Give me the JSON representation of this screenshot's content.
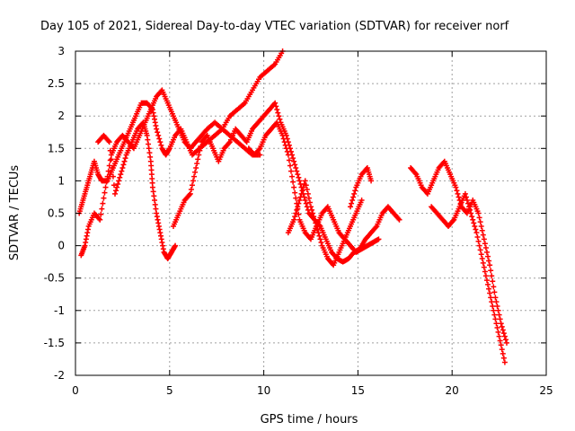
{
  "chart_data": {
    "type": "scatter",
    "title": "Day 105 of 2021, Sidereal Day-to-day VTEC variation (SDTVAR) for receiver norf",
    "xlabel": "GPS time / hours",
    "ylabel": "SDTVAR / TECUs",
    "xlim": [
      0,
      25
    ],
    "ylim": [
      -2,
      3
    ],
    "xticks": [
      0,
      5,
      10,
      15,
      20,
      25
    ],
    "yticks": [
      -2,
      -1.5,
      -1,
      -0.5,
      0,
      0.5,
      1,
      1.5,
      2,
      2.5,
      3
    ],
    "xtick_labels": [
      "0",
      "5",
      "10",
      "15",
      "20",
      "25"
    ],
    "ytick_labels": [
      "-2",
      "-1.5",
      "-1",
      "-0.5",
      "0",
      "0.5",
      "1",
      "1.5",
      "2",
      "2.5",
      "3"
    ],
    "grid": true,
    "marker": "+",
    "color": "#ff0000",
    "series": [
      {
        "name": "s1",
        "x": [
          0.2,
          0.4,
          0.6,
          0.8,
          1.0,
          1.2,
          1.4,
          1.7,
          2.0,
          2.3,
          2.6,
          2.9,
          3.2,
          3.5,
          3.8,
          4.1,
          4.3,
          4.6,
          4.8,
          5.0,
          5.3,
          5.6,
          5.9,
          6.2,
          6.6,
          7.0,
          7.4,
          7.8,
          8.2,
          8.6,
          9.0,
          9.4,
          9.8
        ],
        "y": [
          0.5,
          0.7,
          0.9,
          1.1,
          1.3,
          1.1,
          1.0,
          1.0,
          1.2,
          1.4,
          1.6,
          1.8,
          2.0,
          2.2,
          2.2,
          2.1,
          1.8,
          1.5,
          1.4,
          1.5,
          1.7,
          1.8,
          1.6,
          1.4,
          1.5,
          1.6,
          1.7,
          1.8,
          1.7,
          1.6,
          1.5,
          1.4,
          1.4
        ]
      },
      {
        "name": "s2",
        "x": [
          0.3,
          0.5,
          0.7,
          1.0,
          1.3,
          1.6,
          1.9,
          2.2,
          2.5,
          2.8,
          3.1,
          3.4,
          3.7,
          4.0,
          4.3,
          4.6,
          4.9,
          5.2,
          5.5,
          5.8,
          6.1,
          6.4,
          6.7,
          7.0,
          7.4,
          7.8,
          8.2,
          8.6,
          9.0,
          9.4,
          9.8,
          10.2,
          10.6,
          11.0
        ],
        "y": [
          -0.15,
          0.0,
          0.3,
          0.5,
          0.4,
          0.9,
          1.4,
          1.6,
          1.7,
          1.6,
          1.5,
          1.7,
          1.9,
          2.1,
          2.3,
          2.4,
          2.2,
          2.0,
          1.8,
          1.6,
          1.5,
          1.6,
          1.7,
          1.8,
          1.9,
          1.8,
          2.0,
          2.1,
          2.2,
          2.4,
          2.6,
          2.7,
          2.8,
          3.0
        ]
      },
      {
        "name": "s3",
        "x": [
          1.2,
          1.5,
          1.8,
          2.1,
          2.4,
          2.7,
          3.0,
          3.3,
          3.6,
          3.8,
          4.0,
          4.1,
          4.3,
          4.5,
          4.7,
          4.9,
          5.1,
          5.3
        ],
        "y": [
          1.6,
          1.7,
          1.6,
          0.8,
          1.1,
          1.4,
          1.6,
          1.8,
          1.9,
          1.7,
          1.3,
          0.9,
          0.5,
          0.2,
          -0.1,
          -0.2,
          -0.1,
          0.0
        ]
      },
      {
        "name": "s4",
        "x": [
          5.2,
          5.5,
          5.8,
          6.1,
          6.4,
          6.7,
          7.0,
          7.3,
          7.6,
          7.9,
          8.2,
          8.5,
          8.8,
          9.1,
          9.4,
          9.7,
          10.0,
          10.3,
          10.6,
          10.9,
          11.2,
          11.5,
          11.8,
          12.1,
          12.4,
          12.7,
          13.0,
          13.3,
          13.6,
          13.9,
          14.2,
          14.5,
          14.8,
          15.1,
          15.4,
          15.7,
          16.0,
          16.3,
          16.6,
          16.9,
          17.2
        ],
        "y": [
          0.3,
          0.5,
          0.7,
          0.8,
          1.2,
          1.6,
          1.7,
          1.5,
          1.3,
          1.5,
          1.6,
          1.8,
          1.7,
          1.6,
          1.8,
          1.9,
          2.0,
          2.1,
          2.2,
          1.9,
          1.7,
          1.4,
          1.1,
          0.8,
          0.5,
          0.4,
          0.3,
          0.1,
          -0.1,
          -0.2,
          -0.25,
          -0.2,
          -0.1,
          -0.05,
          0.1,
          0.2,
          0.3,
          0.5,
          0.6,
          0.5,
          0.4
        ]
      },
      {
        "name": "s5",
        "x": [
          9.2,
          9.5,
          9.8,
          10.1,
          10.4,
          10.7,
          11.0,
          11.3,
          11.6,
          11.9,
          12.2,
          12.5,
          12.8,
          13.1,
          13.4,
          13.7,
          14.0,
          14.3,
          14.6,
          14.9,
          15.2,
          15.5,
          15.8,
          16.1
        ],
        "y": [
          1.5,
          1.4,
          1.5,
          1.7,
          1.8,
          1.9,
          1.7,
          1.4,
          0.9,
          0.4,
          0.2,
          0.1,
          0.3,
          0.5,
          0.6,
          0.4,
          0.2,
          0.1,
          0.0,
          -0.1,
          -0.05,
          0.0,
          0.05,
          0.1
        ]
      },
      {
        "name": "s6",
        "x": [
          11.3,
          11.6,
          11.9,
          12.2,
          12.5,
          12.8,
          13.1,
          13.4,
          13.7,
          14.0,
          14.3,
          14.6,
          14.9,
          15.2
        ],
        "y": [
          0.2,
          0.4,
          0.7,
          1.0,
          0.6,
          0.3,
          0.0,
          -0.2,
          -0.3,
          -0.1,
          0.1,
          0.3,
          0.5,
          0.7
        ]
      },
      {
        "name": "s7",
        "x": [
          14.6,
          14.9,
          15.2,
          15.5,
          15.7
        ],
        "y": [
          0.6,
          0.9,
          1.1,
          1.2,
          1.0
        ]
      },
      {
        "name": "s8",
        "x": [
          17.8,
          18.1,
          18.4,
          18.7,
          19.0,
          19.3,
          19.6,
          19.9,
          20.2,
          20.5,
          20.8,
          21.1,
          21.4,
          21.7,
          22.0,
          22.3,
          22.6,
          22.9
        ],
        "y": [
          1.2,
          1.1,
          0.9,
          0.8,
          1.0,
          1.2,
          1.3,
          1.1,
          0.9,
          0.6,
          0.5,
          0.7,
          0.5,
          0.1,
          -0.3,
          -0.8,
          -1.2,
          -1.5
        ]
      },
      {
        "name": "s9",
        "x": [
          18.9,
          19.2,
          19.5,
          19.8,
          20.1,
          20.4,
          20.7,
          21.0,
          21.3,
          21.6,
          21.9,
          22.2,
          22.5,
          22.8
        ],
        "y": [
          0.6,
          0.5,
          0.4,
          0.3,
          0.4,
          0.6,
          0.8,
          0.5,
          0.2,
          -0.2,
          -0.6,
          -1.0,
          -1.4,
          -1.8
        ]
      }
    ]
  }
}
